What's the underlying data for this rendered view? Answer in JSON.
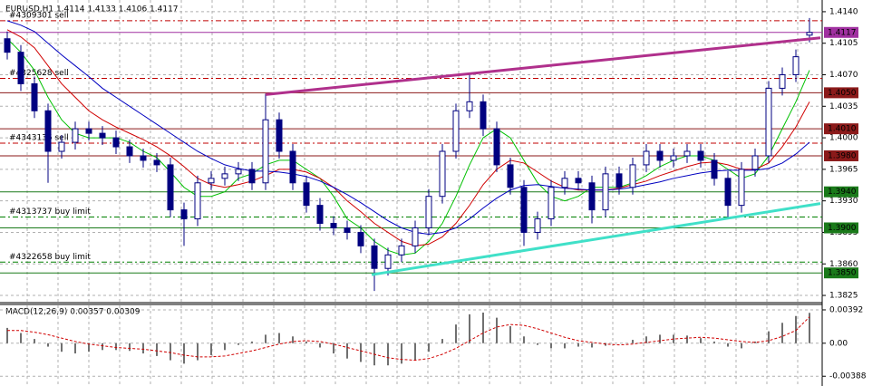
{
  "chart_data": [
    {
      "type": "candlestick",
      "title": "EURUSD,H1  1.4114 1.4133 1.4106 1.4117",
      "candles": {
        "color": "#000080",
        "open": [
          1.411,
          1.4095,
          1.406,
          1.403,
          1.3985,
          1.3995,
          1.401,
          1.4005,
          1.4,
          1.399,
          1.398,
          1.3975,
          1.397,
          1.392,
          1.391,
          1.395,
          1.3955,
          1.396,
          1.3965,
          1.395,
          1.402,
          1.3985,
          1.395,
          1.3925,
          1.3905,
          1.39,
          1.3895,
          1.388,
          1.3855,
          1.387,
          1.388,
          1.39,
          1.3935,
          1.3985,
          1.403,
          1.404,
          1.401,
          1.397,
          1.3945,
          1.3895,
          1.391,
          1.3945,
          1.3955,
          1.395,
          1.392,
          1.396,
          1.3945,
          1.397,
          1.3985,
          1.3975,
          1.398,
          1.3985,
          1.3975,
          1.3955,
          1.3925,
          1.3965,
          1.398,
          1.4055,
          1.407,
          1.4114
        ],
        "high": [
          1.4118,
          1.4103,
          1.4068,
          1.4038,
          1.4003,
          1.4018,
          1.4018,
          1.4013,
          1.4008,
          1.3998,
          1.3988,
          1.3983,
          1.3978,
          1.3928,
          1.3958,
          1.3963,
          1.3968,
          1.3973,
          1.3973,
          1.4049,
          1.4028,
          1.3993,
          1.3958,
          1.3933,
          1.3913,
          1.3908,
          1.3903,
          1.3888,
          1.3878,
          1.3888,
          1.3908,
          1.3943,
          1.3993,
          1.4038,
          1.407,
          1.4048,
          1.4018,
          1.3978,
          1.3953,
          1.3918,
          1.3953,
          1.3963,
          1.3963,
          1.3958,
          1.3968,
          1.3968,
          1.3978,
          1.3993,
          1.3993,
          1.3988,
          1.3993,
          1.3993,
          1.3983,
          1.3963,
          1.3973,
          1.3988,
          1.4063,
          1.4078,
          1.4098,
          1.4133
        ],
        "low": [
          1.4087,
          1.4052,
          1.4022,
          1.395,
          1.3977,
          1.3987,
          1.3997,
          1.3992,
          1.3982,
          1.3972,
          1.3967,
          1.3962,
          1.3912,
          1.388,
          1.3902,
          1.3942,
          1.3947,
          1.3952,
          1.3942,
          1.3942,
          1.3977,
          1.3942,
          1.3917,
          1.3897,
          1.3892,
          1.3887,
          1.3872,
          1.383,
          1.3847,
          1.3862,
          1.3872,
          1.3892,
          1.3927,
          1.3977,
          1.4022,
          1.4002,
          1.3962,
          1.3937,
          1.388,
          1.3887,
          1.3902,
          1.3937,
          1.3942,
          1.3905,
          1.3912,
          1.3937,
          1.3937,
          1.3962,
          1.3967,
          1.3967,
          1.3972,
          1.3967,
          1.3947,
          1.391,
          1.3917,
          1.3957,
          1.3972,
          1.4047,
          1.4062,
          1.4106
        ],
        "close": [
          1.4095,
          1.406,
          1.403,
          1.3985,
          1.3995,
          1.401,
          1.4005,
          1.4,
          1.399,
          1.398,
          1.3975,
          1.397,
          1.392,
          1.391,
          1.395,
          1.3955,
          1.396,
          1.3965,
          1.395,
          1.402,
          1.3985,
          1.395,
          1.3925,
          1.3905,
          1.39,
          1.3895,
          1.388,
          1.3855,
          1.387,
          1.388,
          1.39,
          1.3935,
          1.3985,
          1.403,
          1.404,
          1.401,
          1.397,
          1.3945,
          1.3895,
          1.391,
          1.3945,
          1.3955,
          1.395,
          1.392,
          1.396,
          1.3945,
          1.397,
          1.3985,
          1.3975,
          1.398,
          1.3985,
          1.3975,
          1.3955,
          1.3925,
          1.3965,
          1.398,
          1.4055,
          1.407,
          1.409,
          1.4117
        ]
      },
      "series": [
        {
          "color": "#00c000",
          "values": [
            1.411,
            1.4095,
            1.4075,
            1.4045,
            1.402,
            1.4005,
            1.4,
            1.4,
            1.4,
            1.3995,
            1.3985,
            1.3978,
            1.3962,
            1.3945,
            1.3935,
            1.3935,
            1.394,
            1.3955,
            1.396,
            1.397,
            1.3975,
            1.3975,
            1.3965,
            1.3955,
            1.3935,
            1.391,
            1.39,
            1.3885,
            1.3875,
            1.387,
            1.3872,
            1.3885,
            1.3905,
            1.3935,
            1.397,
            1.4,
            1.401,
            1.4,
            1.3975,
            1.395,
            1.3935,
            1.393,
            1.3935,
            1.3945,
            1.3945,
            1.3945,
            1.395,
            1.3958,
            1.3968,
            1.3975,
            1.398,
            1.398,
            1.3975,
            1.3965,
            1.3955,
            1.396,
            1.398,
            1.401,
            1.404,
            1.4075
          ]
        },
        {
          "color": "#d00000",
          "values": [
            1.412,
            1.4112,
            1.41,
            1.408,
            1.406,
            1.4045,
            1.403,
            1.402,
            1.4012,
            1.4005,
            1.3998,
            1.399,
            1.398,
            1.3968,
            1.3955,
            1.3948,
            1.3945,
            1.3948,
            1.3952,
            1.3958,
            1.3965,
            1.3965,
            1.3962,
            1.3955,
            1.3945,
            1.393,
            1.3918,
            1.3905,
            1.3895,
            1.3885,
            1.388,
            1.3882,
            1.389,
            1.3905,
            1.3925,
            1.3948,
            1.3965,
            1.3975,
            1.3972,
            1.3962,
            1.3952,
            1.3945,
            1.3942,
            1.3942,
            1.3942,
            1.3944,
            1.3948,
            1.3952,
            1.3958,
            1.3963,
            1.3968,
            1.3972,
            1.3973,
            1.397,
            1.3965,
            1.3965,
            1.3972,
            1.399,
            1.4012,
            1.404
          ]
        },
        {
          "color": "#0000c0",
          "values": [
            1.413,
            1.4125,
            1.4118,
            1.4105,
            1.4092,
            1.408,
            1.4068,
            1.4055,
            1.4045,
            1.4035,
            1.4025,
            1.4015,
            1.4005,
            1.3995,
            1.3985,
            1.3977,
            1.397,
            1.3966,
            1.3963,
            1.3963,
            1.3962,
            1.396,
            1.3957,
            1.3952,
            1.3945,
            1.3937,
            1.3928,
            1.3918,
            1.3908,
            1.39,
            1.3895,
            1.3893,
            1.3895,
            1.39,
            1.391,
            1.3922,
            1.3933,
            1.3942,
            1.3947,
            1.3948,
            1.3946,
            1.3944,
            1.3943,
            1.3942,
            1.3942,
            1.3943,
            1.3945,
            1.3948,
            1.3951,
            1.3955,
            1.3958,
            1.3961,
            1.3963,
            1.3964,
            1.3964,
            1.3964,
            1.3966,
            1.3972,
            1.3982,
            1.3995
          ]
        }
      ],
      "trendlines": [
        {
          "color": "#b0308c",
          "x": [
            19,
            59.8
          ],
          "values": [
            1.4048,
            1.4111
          ]
        },
        {
          "color": "#40e0c8",
          "x": [
            26.8,
            59.8
          ],
          "values": [
            1.3848,
            1.3927
          ]
        }
      ],
      "orders": [
        {
          "label": "#4309301 sell",
          "value": 1.413,
          "color": "#c00000"
        },
        {
          "label": "#4325628 sell",
          "value": 1.4066,
          "color": "#c00000"
        },
        {
          "label": "#4343136 sell",
          "value": 1.3994,
          "color": "#c00000"
        },
        {
          "label": "#4313737 buy limit",
          "value": 1.3912,
          "color": "#008000"
        },
        {
          "label": "#4322658 buy limit",
          "value": 1.3862,
          "color": "#008000"
        }
      ],
      "levels": [
        {
          "value": 1.4117,
          "color": "#a030a0"
        },
        {
          "value": 1.405,
          "label": "1.4050",
          "color": "#8b1a1a"
        },
        {
          "value": 1.401,
          "label": "1.4010",
          "color": "#8b1a1a"
        },
        {
          "value": 1.398,
          "label": "1.3980",
          "color": "#8b1a1a"
        },
        {
          "value": 1.394,
          "label": "1.3940",
          "color": "#1a7a1a"
        },
        {
          "value": 1.39,
          "label": "1.3900",
          "color": "#1a7a1a"
        },
        {
          "value": 1.385,
          "label": "1.3850",
          "color": "#1a7a1a"
        }
      ],
      "ylim": [
        1.3818,
        1.4153
      ],
      "yticks": [
        {
          "value": 1.414,
          "label": "1.4140"
        },
        1.4105,
        {
          "value": 1.407,
          "label": "1.4070"
        },
        1.4035,
        {
          "value": 1.4,
          "label": "1.4000"
        },
        1.3965,
        {
          "value": 1.393,
          "label": "1.3930"
        },
        1.3895,
        {
          "value": 1.386,
          "label": "1.3860"
        },
        1.3825
      ],
      "grid": true
    },
    {
      "type": "macd",
      "title": "MACD(12,26,9) 0.00357 0.00309",
      "histogram": {
        "color": "#707070",
        "values": [
          0.0018,
          0.0012,
          0.0005,
          -0.0004,
          -0.001,
          -0.0012,
          -0.001,
          -0.0008,
          -0.0008,
          -0.0009,
          -0.0012,
          -0.0015,
          -0.002,
          -0.0024,
          -0.002,
          -0.0014,
          -0.0008,
          -0.0002,
          0.0002,
          0.001,
          0.0012,
          0.0008,
          0.0002,
          -0.0005,
          -0.0012,
          -0.0018,
          -0.0022,
          -0.0026,
          -0.0026,
          -0.0024,
          -0.002,
          -0.001,
          0.0005,
          0.0022,
          0.0034,
          0.0036,
          0.003,
          0.002,
          0.0008,
          -0.0002,
          -0.0006,
          -0.0006,
          -0.0004,
          -0.0005,
          -0.0003,
          0.0,
          0.0004,
          0.0008,
          0.001,
          0.001,
          0.0009,
          0.0006,
          0.0002,
          -0.0004,
          -0.0006,
          0.0002,
          0.0014,
          0.0024,
          0.0032,
          0.00357
        ]
      },
      "signal": {
        "color": "#d00000",
        "values": [
          0.0015,
          0.0015,
          0.0013,
          0.001,
          0.0006,
          0.0002,
          -0.0001,
          -0.0003,
          -0.0005,
          -0.0006,
          -0.0007,
          -0.0009,
          -0.0011,
          -0.0014,
          -0.0016,
          -0.0016,
          -0.0015,
          -0.0012,
          -0.0009,
          -0.0005,
          -0.0001,
          0.0002,
          0.0003,
          0.0002,
          -0.0001,
          -0.0005,
          -0.0009,
          -0.0013,
          -0.0017,
          -0.0019,
          -0.002,
          -0.0018,
          -0.0013,
          -0.0006,
          0.0003,
          0.0012,
          0.0019,
          0.0022,
          0.0021,
          0.0017,
          0.0012,
          0.0007,
          0.0003,
          0.0001,
          -0.0001,
          -0.0002,
          -0.0001,
          0.0001,
          0.0003,
          0.0005,
          0.0006,
          0.0007,
          0.0006,
          0.0004,
          0.0002,
          0.0001,
          0.0003,
          0.0008,
          0.0015,
          0.00309
        ]
      },
      "ylim": [
        -0.0046,
        0.00445
      ],
      "yticks": [
        0.00392,
        {
          "value": 0,
          "label": "0.00"
        },
        -0.00388
      ],
      "grid": true
    }
  ]
}
